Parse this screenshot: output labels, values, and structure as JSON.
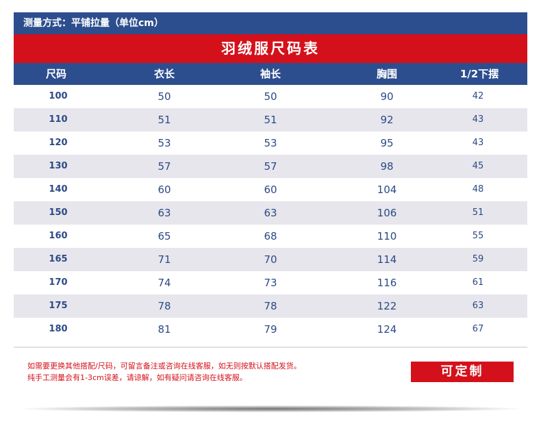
{
  "measure_method": "测量方式：平铺拉量（单位cm）",
  "title": "羽绒服尺码表",
  "headers": [
    "尺码",
    "衣长",
    "袖长",
    "胸围",
    "1/2下摆"
  ],
  "rows": [
    {
      "size": "100",
      "length": "50",
      "sleeve": "50",
      "chest": "90",
      "hem": "42"
    },
    {
      "size": "110",
      "length": "51",
      "sleeve": "51",
      "chest": "92",
      "hem": "43"
    },
    {
      "size": "120",
      "length": "53",
      "sleeve": "53",
      "chest": "95",
      "hem": "43"
    },
    {
      "size": "130",
      "length": "57",
      "sleeve": "57",
      "chest": "98",
      "hem": "45"
    },
    {
      "size": "140",
      "length": "60",
      "sleeve": "60",
      "chest": "104",
      "hem": "48"
    },
    {
      "size": "150",
      "length": "63",
      "sleeve": "63",
      "chest": "106",
      "hem": "51"
    },
    {
      "size": "160",
      "length": "65",
      "sleeve": "68",
      "chest": "110",
      "hem": "55"
    },
    {
      "size": "165",
      "length": "71",
      "sleeve": "70",
      "chest": "114",
      "hem": "59"
    },
    {
      "size": "170",
      "length": "74",
      "sleeve": "73",
      "chest": "116",
      "hem": "61"
    },
    {
      "size": "175",
      "length": "78",
      "sleeve": "78",
      "chest": "122",
      "hem": "63"
    },
    {
      "size": "180",
      "length": "81",
      "sleeve": "79",
      "chest": "124",
      "hem": "67"
    }
  ],
  "notes": [
    "如需要更换其他搭配/尺码，可留言备注或咨询在线客服，如无则按默认搭配发货。",
    "纯手工测量会有1-3cm误差，请谅解，如有疑问请咨询在线客服。"
  ],
  "custom_label": "可定制",
  "colors": {
    "navy": "#2d4e8e",
    "red": "#d4111b",
    "row_alt": "#e6e6ec",
    "text_blue": "#2c4a86"
  }
}
